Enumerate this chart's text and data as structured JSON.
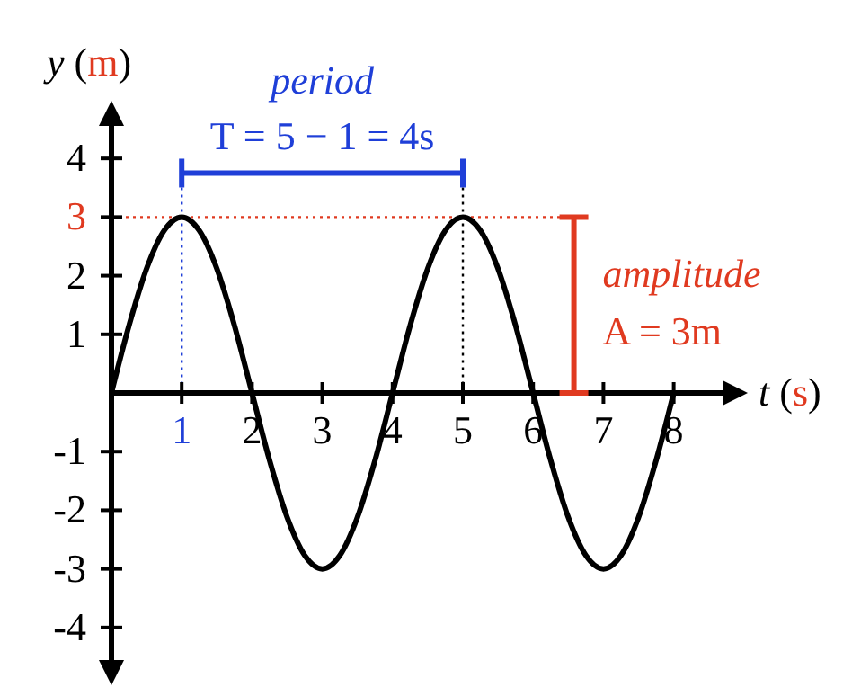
{
  "chart_data": {
    "type": "line",
    "xlabel": "t (s)",
    "ylabel": "y (m)",
    "x": [
      0,
      0.25,
      0.5,
      0.75,
      1,
      1.25,
      1.5,
      1.75,
      2,
      2.25,
      2.5,
      2.75,
      3,
      3.25,
      3.5,
      3.75,
      4,
      4.25,
      4.5,
      4.75,
      5,
      5.25,
      5.5,
      5.75,
      6,
      6.25,
      6.5,
      6.75,
      7,
      7.25,
      7.5,
      7.75,
      8
    ],
    "series": [
      {
        "color": "#000000",
        "values": [
          0,
          1.15,
          2.12,
          2.77,
          3,
          2.77,
          2.12,
          1.15,
          0,
          -1.15,
          -2.12,
          -2.77,
          -3,
          -2.77,
          -2.12,
          -1.15,
          0,
          1.15,
          2.12,
          2.77,
          3,
          2.77,
          2.12,
          1.15,
          0,
          -1.15,
          -2.12,
          -2.77,
          -3,
          -2.77,
          -2.12,
          -1.15,
          0
        ]
      }
    ],
    "xlim": [
      0,
      8.9
    ],
    "ylim": [
      -4.8,
      4.8
    ],
    "xticks": [
      1,
      2,
      3,
      4,
      5,
      6,
      7,
      8
    ],
    "yticks": [
      -4,
      -3,
      -2,
      -1,
      1,
      2,
      3,
      4
    ],
    "ref_lines": [
      {
        "axis": "x",
        "value": 1,
        "color": "#1f3fd8",
        "line_style": "dotted"
      },
      {
        "axis": "x",
        "value": 5,
        "color": "#000000",
        "line_style": "dotted"
      },
      {
        "axis": "y",
        "value": 3,
        "color": "#e03a20",
        "line_style": "dotted"
      }
    ],
    "annotations": [
      "period",
      "T = 5 − 1 = 4s",
      {
        "text": "amplitude",
        "x": 6.58,
        "y": 3
      },
      {
        "text": "A = 3m",
        "x": 6.58,
        "y": 3
      }
    ],
    "grid": false,
    "marker": "none",
    "line_style": "solid"
  }
}
